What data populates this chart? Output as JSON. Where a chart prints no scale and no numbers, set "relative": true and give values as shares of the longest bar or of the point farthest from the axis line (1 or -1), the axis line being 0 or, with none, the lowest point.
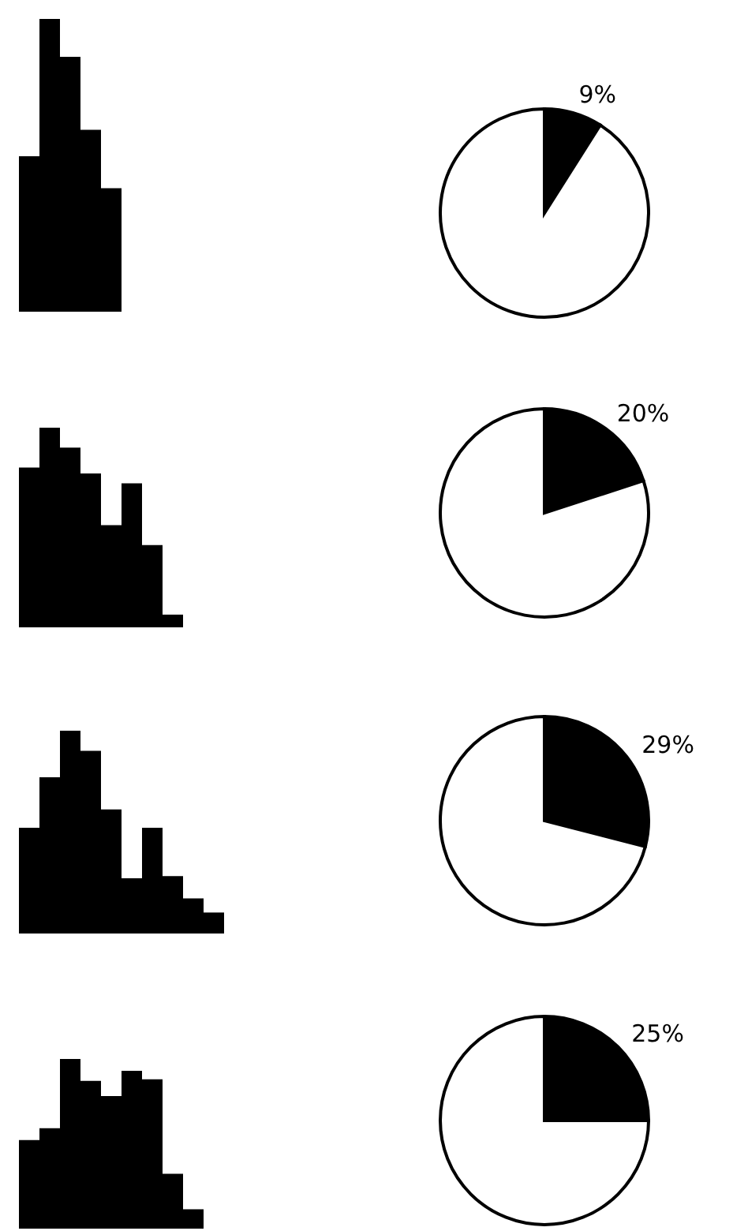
{
  "chart_data": [
    {
      "type": "bar",
      "relative": true,
      "categories": [
        null,
        null,
        null,
        null,
        null
      ],
      "values": [
        0.53,
        1,
        0.87,
        0.62,
        0.42
      ],
      "color": "#000000"
    },
    {
      "type": "pie",
      "categories": [
        null,
        null
      ],
      "values": [
        9,
        91
      ],
      "colors": [
        "#000000",
        "#ffffff"
      ],
      "value_labels": [
        "9%",
        null
      ]
    },
    {
      "type": "bar",
      "relative": true,
      "categories": [
        null,
        null,
        null,
        null,
        null,
        null,
        null,
        null
      ],
      "values": [
        0.8,
        1,
        0.9,
        0.77,
        0.51,
        0.72,
        0.41,
        0.06
      ],
      "color": "#000000"
    },
    {
      "type": "pie",
      "categories": [
        null,
        null
      ],
      "values": [
        20,
        80
      ],
      "colors": [
        "#000000",
        "#ffffff"
      ],
      "value_labels": [
        "20%",
        null
      ]
    },
    {
      "type": "bar",
      "relative": true,
      "categories": [
        null,
        null,
        null,
        null,
        null,
        null,
        null,
        null,
        null,
        null
      ],
      "values": [
        0.52,
        0.77,
        1,
        0.9,
        0.61,
        0.27,
        0.52,
        0.28,
        0.17,
        0.1
      ],
      "color": "#000000"
    },
    {
      "type": "pie",
      "categories": [
        null,
        null
      ],
      "values": [
        29,
        71
      ],
      "colors": [
        "#000000",
        "#ffffff"
      ],
      "value_labels": [
        "29%",
        null
      ]
    },
    {
      "type": "bar",
      "relative": true,
      "categories": [
        null,
        null,
        null,
        null,
        null,
        null,
        null,
        null,
        null
      ],
      "values": [
        0.52,
        0.59,
        1,
        0.87,
        0.78,
        0.93,
        0.88,
        0.32,
        0.11
      ],
      "color": "#000000"
    },
    {
      "type": "pie",
      "categories": [
        null,
        null
      ],
      "values": [
        25,
        75
      ],
      "colors": [
        "#000000",
        "#ffffff"
      ],
      "value_labels": [
        "25%",
        null
      ]
    }
  ]
}
